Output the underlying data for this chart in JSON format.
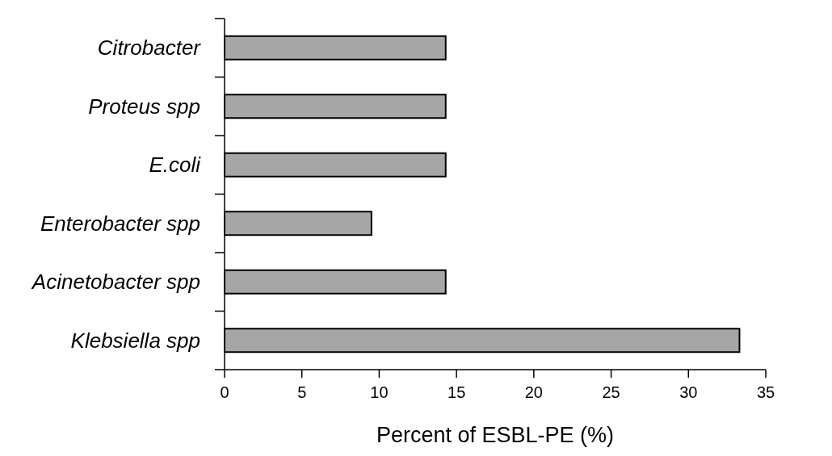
{
  "chart_data": {
    "type": "bar",
    "orientation": "horizontal",
    "xlabel": "Percent of ESBL-PE (%)",
    "categories": [
      "Citrobacter",
      "Proteus spp",
      "E.coli",
      "Enterobacter spp",
      "Acinetobacter spp",
      "Klebsiella spp"
    ],
    "values": [
      14.3,
      14.3,
      14.3,
      9.5,
      14.3,
      33.3
    ],
    "color": "#a6a6a6",
    "xlim": [
      0,
      35
    ],
    "xticks": [
      0,
      5,
      10,
      15,
      20,
      25,
      30,
      35
    ],
    "grid": false
  }
}
